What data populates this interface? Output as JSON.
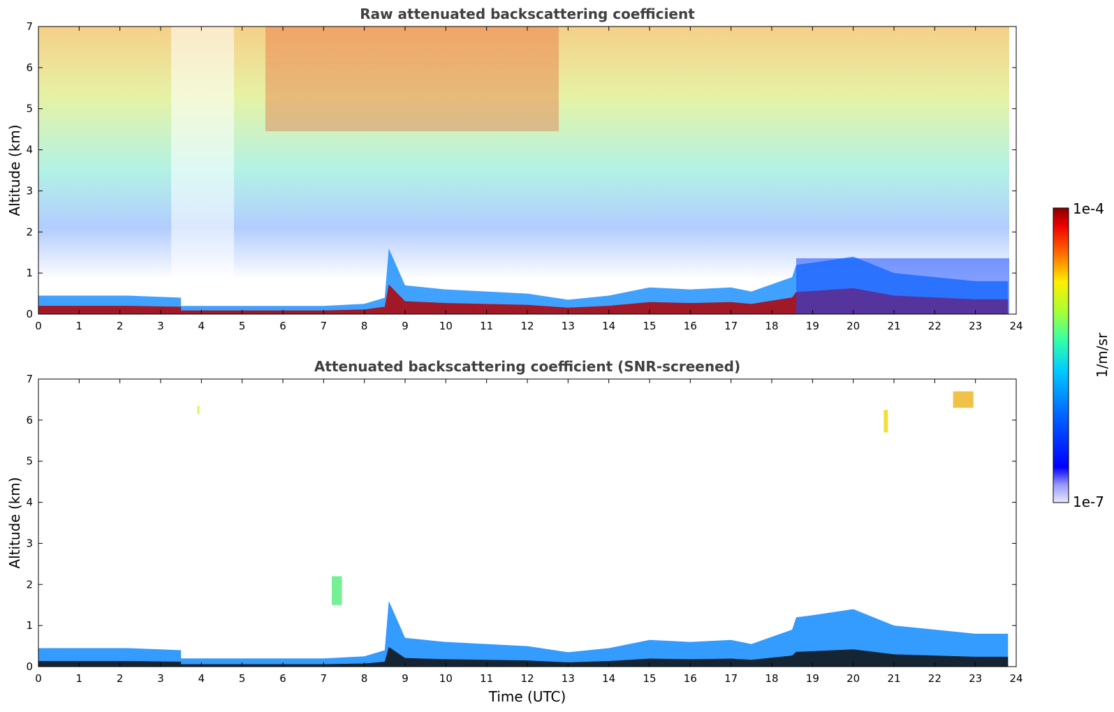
{
  "chart_data": [
    {
      "type": "heatmap",
      "title": "Raw attenuated backscattering coefficient",
      "xlabel": "",
      "ylabel": "Altitude (km)",
      "xlim": [
        0,
        24
      ],
      "ylim": [
        0,
        7
      ],
      "x_ticks": [
        0,
        1,
        2,
        3,
        4,
        5,
        6,
        7,
        8,
        9,
        10,
        11,
        12,
        13,
        14,
        15,
        16,
        17,
        18,
        19,
        20,
        21,
        22,
        23,
        24
      ],
      "y_ticks": [
        0,
        1,
        2,
        3,
        4,
        5,
        6,
        7
      ],
      "x_units": "hours UTC",
      "y_units": "km",
      "regions": [
        {
          "desc": "boundary layer top",
          "x": [
            0,
            2.2,
            2.2,
            3.5,
            3.5,
            7,
            8,
            8.5,
            8.6,
            9,
            10,
            12,
            13,
            14,
            15,
            16,
            17,
            17.5,
            18.5,
            18.6,
            19,
            20,
            21,
            22,
            23,
            23.8
          ],
          "y": [
            0.45,
            0.45,
            0.45,
            0.4,
            0.2,
            0.2,
            0.25,
            0.4,
            1.6,
            0.7,
            0.6,
            0.5,
            0.35,
            0.45,
            0.65,
            0.6,
            0.65,
            0.55,
            0.9,
            1.2,
            1.25,
            1.4,
            1.0,
            0.9,
            0.8,
            0.8
          ]
        },
        {
          "desc": "background noise colour, lower to upper troposphere",
          "level_low_km": "blue",
          "level_high_km": "orange-red"
        }
      ]
    },
    {
      "type": "heatmap",
      "title": "Attenuated backscattering coefficient (SNR-screened)",
      "xlabel": "Time (UTC)",
      "ylabel": "Altitude (km)",
      "xlim": [
        0,
        24
      ],
      "ylim": [
        0,
        7
      ],
      "x_ticks": [
        0,
        1,
        2,
        3,
        4,
        5,
        6,
        7,
        8,
        9,
        10,
        11,
        12,
        13,
        14,
        15,
        16,
        17,
        18,
        19,
        20,
        21,
        22,
        23,
        24
      ],
      "y_ticks": [
        0,
        1,
        2,
        3,
        4,
        5,
        6,
        7
      ],
      "features": [
        {
          "desc": "aerosol layer",
          "x_range": [
            7.2,
            7.45
          ],
          "y_range": [
            1.5,
            2.2
          ]
        },
        {
          "desc": "cirrus",
          "x_range": [
            20.75,
            20.85
          ],
          "y_range": [
            5.7,
            6.25
          ]
        },
        {
          "desc": "cirrus",
          "x_range": [
            22.45,
            22.95
          ],
          "y_range": [
            6.3,
            6.7
          ]
        },
        {
          "desc": "small cloud",
          "x_range": [
            3.9,
            3.95
          ],
          "y_range": [
            6.15,
            6.35
          ]
        }
      ]
    }
  ],
  "colorbar": {
    "label": "1/m/sr",
    "max_label": "1e-4",
    "min_label": "1e-7",
    "scale": "log",
    "range": [
      1e-07,
      0.0001
    ],
    "colormap": "jet"
  }
}
